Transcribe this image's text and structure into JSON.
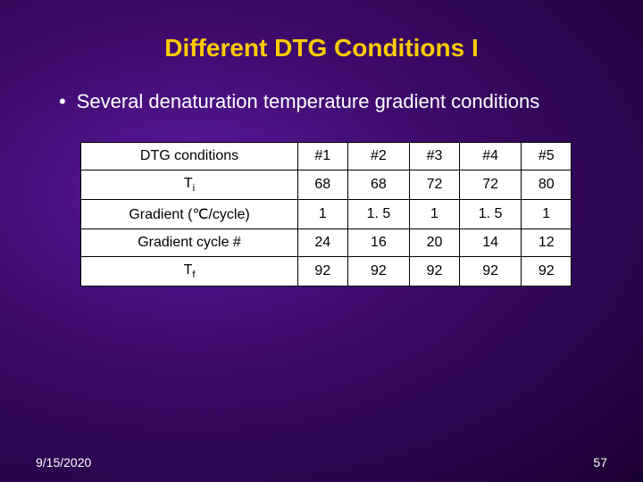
{
  "title": "Different DTG Conditions I",
  "bullet": "Several denaturation temperature gradient conditions",
  "table": {
    "type": "table",
    "background_color": "#ffffff",
    "border_color": "#000000",
    "text_color": "#000000",
    "fontsize": 16,
    "columns": [
      "DTG conditions",
      "#1",
      "#2",
      "#3",
      "#4",
      "#5"
    ],
    "rows": [
      {
        "label": "Ti",
        "label_has_sub": true,
        "label_main": "T",
        "label_sub": "i",
        "values": [
          "68",
          "68",
          "72",
          "72",
          "80"
        ]
      },
      {
        "label": "Gradient (℃/cycle)",
        "label_has_sub": false,
        "values": [
          "1",
          "1. 5",
          "1",
          "1. 5",
          "1"
        ]
      },
      {
        "label": "Gradient cycle #",
        "label_has_sub": false,
        "values": [
          "24",
          "16",
          "20",
          "14",
          "12"
        ]
      },
      {
        "label": "Tf",
        "label_has_sub": true,
        "label_main": "T",
        "label_sub": "f",
        "values": [
          "92",
          "92",
          "92",
          "92",
          "92"
        ]
      }
    ]
  },
  "footer": {
    "date": "9/15/2020",
    "page": "57"
  },
  "colors": {
    "title_color": "#ffcc00",
    "body_text_color": "#ffffff",
    "bg_center": "#5a1a9e",
    "bg_mid": "#3d0a6b",
    "bg_edge": "#1a0033"
  }
}
